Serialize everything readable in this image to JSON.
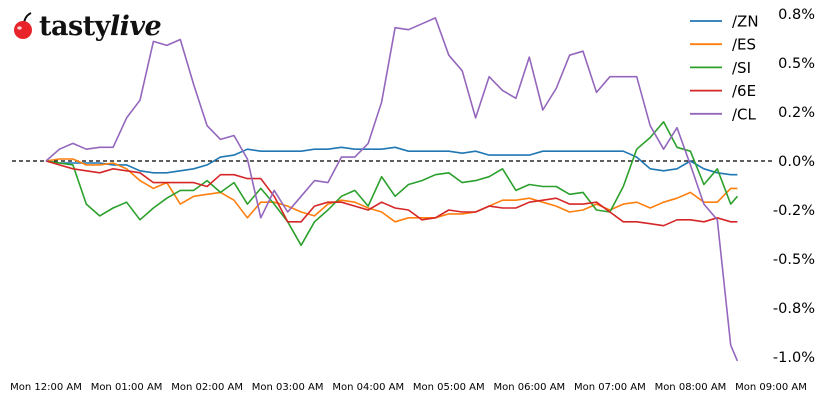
{
  "logo": {
    "text": "tastylive",
    "text_part1": "tasty",
    "text_part2": "live",
    "icon": "cherry-icon",
    "icon_color": "#e8232a"
  },
  "chart_data": {
    "type": "line",
    "title": "",
    "xlabel": "",
    "ylabel": "",
    "x": [
      "00:00",
      "00:10",
      "00:20",
      "00:30",
      "00:40",
      "00:50",
      "01:00",
      "01:10",
      "01:20",
      "01:30",
      "01:40",
      "01:50",
      "02:00",
      "02:10",
      "02:20",
      "02:30",
      "02:40",
      "02:50",
      "03:00",
      "03:10",
      "03:20",
      "03:30",
      "03:40",
      "03:50",
      "04:00",
      "04:10",
      "04:20",
      "04:30",
      "04:40",
      "04:50",
      "05:00",
      "05:10",
      "05:20",
      "05:30",
      "05:40",
      "05:50",
      "06:00",
      "06:10",
      "06:20",
      "06:30",
      "06:40",
      "06:50",
      "07:00",
      "07:10",
      "07:20",
      "07:30",
      "07:40",
      "07:50",
      "08:00",
      "08:10",
      "08:20",
      "08:30",
      "08:35"
    ],
    "x_ticks": [
      "00:00",
      "01:00",
      "02:00",
      "03:00",
      "04:00",
      "05:00",
      "06:00",
      "07:00",
      "08:00",
      "09:00"
    ],
    "x_tick_labels": [
      "Mon 12:00 AM",
      "Mon 01:00 AM",
      "Mon 02:00 AM",
      "Mon 03:00 AM",
      "Mon 04:00 AM",
      "Mon 05:00 AM",
      "Mon 06:00 AM",
      "Mon 07:00 AM",
      "Mon 08:00 AM",
      "Mon 09:00 AM"
    ],
    "y_unit": "%",
    "y_ticks": [
      0.75,
      0.5,
      0.25,
      0,
      -0.25,
      -0.5,
      -0.75,
      -1.0
    ],
    "y_tick_labels": [
      "0.8%",
      "0.5%",
      "0.2%",
      "0.0%",
      "-0.2%",
      "-0.5%",
      "-0.8%",
      "-1.0%"
    ],
    "y_axis_side": "right",
    "ylim": [
      -1.05,
      0.8
    ],
    "grid": false,
    "zero_line": {
      "style": "dashed",
      "color": "#000000"
    },
    "legend_position": "top-right",
    "series": [
      {
        "name": "/ZN",
        "color": "#1f77b4",
        "values": [
          0,
          -0.01,
          -0.01,
          -0.01,
          -0.01,
          -0.02,
          -0.02,
          -0.05,
          -0.06,
          -0.06,
          -0.05,
          -0.04,
          -0.02,
          0.02,
          0.03,
          0.06,
          0.05,
          0.05,
          0.05,
          0.05,
          0.06,
          0.06,
          0.07,
          0.06,
          0.06,
          0.06,
          0.07,
          0.05,
          0.05,
          0.05,
          0.05,
          0.04,
          0.05,
          0.03,
          0.03,
          0.03,
          0.03,
          0.05,
          0.05,
          0.05,
          0.05,
          0.05,
          0.05,
          0.05,
          0.02,
          -0.04,
          -0.05,
          -0.04,
          0.0,
          -0.04,
          -0.06,
          -0.07,
          -0.07
        ]
      },
      {
        "name": "/ES",
        "color": "#ff7f0e",
        "values": [
          0,
          0.01,
          0.01,
          -0.02,
          -0.02,
          -0.01,
          -0.04,
          -0.1,
          -0.14,
          -0.11,
          -0.22,
          -0.18,
          -0.17,
          -0.16,
          -0.2,
          -0.29,
          -0.21,
          -0.21,
          -0.23,
          -0.26,
          -0.28,
          -0.22,
          -0.2,
          -0.21,
          -0.24,
          -0.26,
          -0.31,
          -0.29,
          -0.29,
          -0.29,
          -0.27,
          -0.27,
          -0.26,
          -0.23,
          -0.2,
          -0.2,
          -0.19,
          -0.21,
          -0.23,
          -0.26,
          -0.25,
          -0.22,
          -0.25,
          -0.22,
          -0.21,
          -0.24,
          -0.21,
          -0.19,
          -0.16,
          -0.21,
          -0.21,
          -0.14,
          -0.14
        ]
      },
      {
        "name": "/SI",
        "color": "#2ca02c",
        "values": [
          0,
          -0.01,
          -0.02,
          -0.22,
          -0.28,
          -0.24,
          -0.21,
          -0.3,
          -0.24,
          -0.19,
          -0.15,
          -0.15,
          -0.1,
          -0.16,
          -0.11,
          -0.22,
          -0.14,
          -0.22,
          -0.31,
          -0.43,
          -0.31,
          -0.25,
          -0.18,
          -0.15,
          -0.23,
          -0.08,
          -0.18,
          -0.12,
          -0.1,
          -0.07,
          -0.06,
          -0.11,
          -0.1,
          -0.08,
          -0.04,
          -0.15,
          -0.12,
          -0.13,
          -0.13,
          -0.17,
          -0.16,
          -0.25,
          -0.26,
          -0.13,
          0.06,
          0.12,
          0.2,
          0.07,
          0.05,
          -0.12,
          -0.04,
          -0.22,
          -0.18
        ]
      },
      {
        "name": "/6E",
        "color": "#d62728",
        "values": [
          0,
          -0.02,
          -0.04,
          -0.05,
          -0.06,
          -0.04,
          -0.05,
          -0.06,
          -0.11,
          -0.11,
          -0.11,
          -0.11,
          -0.13,
          -0.07,
          -0.07,
          -0.09,
          -0.09,
          -0.18,
          -0.31,
          -0.31,
          -0.23,
          -0.21,
          -0.21,
          -0.23,
          -0.25,
          -0.21,
          -0.24,
          -0.25,
          -0.3,
          -0.29,
          -0.25,
          -0.26,
          -0.26,
          -0.23,
          -0.24,
          -0.24,
          -0.21,
          -0.2,
          -0.19,
          -0.22,
          -0.22,
          -0.21,
          -0.26,
          -0.31,
          -0.31,
          -0.32,
          -0.33,
          -0.3,
          -0.3,
          -0.31,
          -0.29,
          -0.31,
          -0.31
        ]
      },
      {
        "name": "/CL",
        "color": "#9467bd",
        "values": [
          0,
          0.06,
          0.09,
          0.06,
          0.07,
          0.07,
          0.22,
          0.31,
          0.61,
          0.59,
          0.62,
          0.39,
          0.18,
          0.11,
          0.13,
          0.01,
          -0.29,
          -0.15,
          -0.26,
          -0.18,
          -0.1,
          -0.11,
          0.02,
          0.02,
          0.09,
          0.3,
          0.68,
          0.67,
          0.7,
          0.73,
          0.54,
          0.46,
          0.22,
          0.43,
          0.36,
          0.32,
          0.53,
          0.26,
          0.37,
          0.54,
          0.56,
          0.35,
          0.43,
          0.43,
          0.43,
          0.18,
          0.06,
          0.17,
          -0.02,
          -0.22,
          -0.3,
          -0.94,
          -1.02
        ]
      }
    ]
  }
}
